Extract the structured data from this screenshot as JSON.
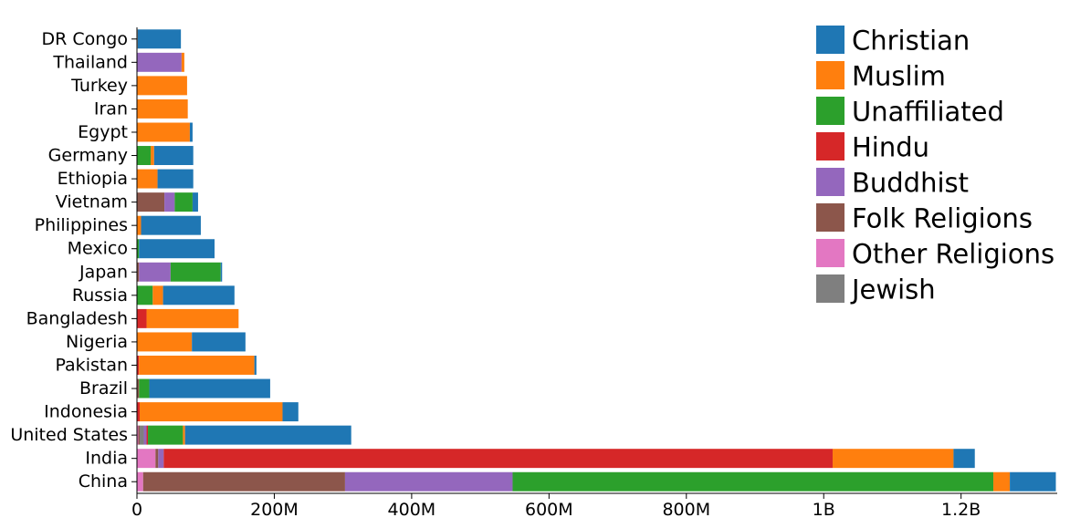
{
  "chart_data": {
    "type": "bar",
    "orientation": "horizontal",
    "stacked": true,
    "title": "",
    "xlabel": "",
    "ylabel": "",
    "xlim": [
      0,
      1340000000
    ],
    "grid": false,
    "legend_position": "top-right",
    "categories": [
      "DR Congo",
      "Thailand",
      "Turkey",
      "Iran",
      "Egypt",
      "Germany",
      "Ethiopia",
      "Vietnam",
      "Philippines",
      "Mexico",
      "Japan",
      "Russia",
      "Bangladesh",
      "Nigeria",
      "Pakistan",
      "Brazil",
      "Indonesia",
      "United States",
      "India",
      "China"
    ],
    "x_ticks": [
      {
        "value": 0,
        "label": "0"
      },
      {
        "value": 200000000,
        "label": "200M"
      },
      {
        "value": 400000000,
        "label": "400M"
      },
      {
        "value": 600000000,
        "label": "600M"
      },
      {
        "value": 800000000,
        "label": "800M"
      },
      {
        "value": 1000000000,
        "label": "1B"
      },
      {
        "value": 1200000000,
        "label": "1.2B"
      }
    ],
    "series": [
      {
        "name": "Other Religions",
        "color": "#e377c2",
        "values": [
          0,
          0,
          0,
          0,
          0,
          0,
          0,
          0,
          0,
          0,
          0,
          0,
          0,
          0,
          0,
          0,
          0,
          2000000,
          27000000,
          9000000
        ]
      },
      {
        "name": "Folk Religions",
        "color": "#8c564b",
        "values": [
          0,
          0,
          0,
          0,
          0,
          0,
          0,
          40000000,
          0,
          0,
          3000000,
          0,
          0,
          0,
          0,
          3000000,
          0,
          2000000,
          4000000,
          294000000
        ]
      },
      {
        "name": "Jewish",
        "color": "#7f7f7f",
        "values": [
          0,
          0,
          0,
          0,
          0,
          0,
          0,
          0,
          0,
          0,
          0,
          0,
          0,
          0,
          0,
          0,
          0,
          6000000,
          0,
          0
        ]
      },
      {
        "name": "Buddhist",
        "color": "#9467bd",
        "values": [
          0,
          65000000,
          0,
          0,
          0,
          0,
          0,
          15000000,
          0,
          0,
          46000000,
          0,
          0,
          0,
          0,
          0,
          0,
          4000000,
          8000000,
          244000000
        ]
      },
      {
        "name": "Hindu",
        "color": "#d62728",
        "values": [
          0,
          0,
          0,
          0,
          0,
          0,
          0,
          0,
          0,
          0,
          0,
          0,
          14000000,
          0,
          3000000,
          0,
          4000000,
          2000000,
          974000000,
          0
        ]
      },
      {
        "name": "Unaffiliated",
        "color": "#2ca02c",
        "values": [
          0,
          0,
          0,
          0,
          0,
          20000000,
          0,
          26000000,
          0,
          3000000,
          73000000,
          23000000,
          0,
          0,
          0,
          15000000,
          0,
          51000000,
          0,
          700000000
        ]
      },
      {
        "name": "Muslim",
        "color": "#ff7f0e",
        "values": [
          1000000,
          4000000,
          73000000,
          74000000,
          77000000,
          5000000,
          30000000,
          0,
          6000000,
          0,
          0,
          15000000,
          134000000,
          80000000,
          168000000,
          0,
          208000000,
          3000000,
          176000000,
          24000000
        ]
      },
      {
        "name": "Christian",
        "color": "#1f77b4",
        "values": [
          63000000,
          0,
          0,
          0,
          4000000,
          57000000,
          52000000,
          8000000,
          87000000,
          110000000,
          2000000,
          104000000,
          0,
          78000000,
          3000000,
          176000000,
          23000000,
          242000000,
          31000000,
          67000000
        ]
      }
    ],
    "legend": [
      {
        "name": "Christian",
        "color": "#1f77b4"
      },
      {
        "name": "Muslim",
        "color": "#ff7f0e"
      },
      {
        "name": "Unaffiliated",
        "color": "#2ca02c"
      },
      {
        "name": "Hindu",
        "color": "#d62728"
      },
      {
        "name": "Buddhist",
        "color": "#9467bd"
      },
      {
        "name": "Folk Religions",
        "color": "#8c564b"
      },
      {
        "name": "Other Religions",
        "color": "#e377c2"
      },
      {
        "name": "Jewish",
        "color": "#7f7f7f"
      }
    ]
  }
}
